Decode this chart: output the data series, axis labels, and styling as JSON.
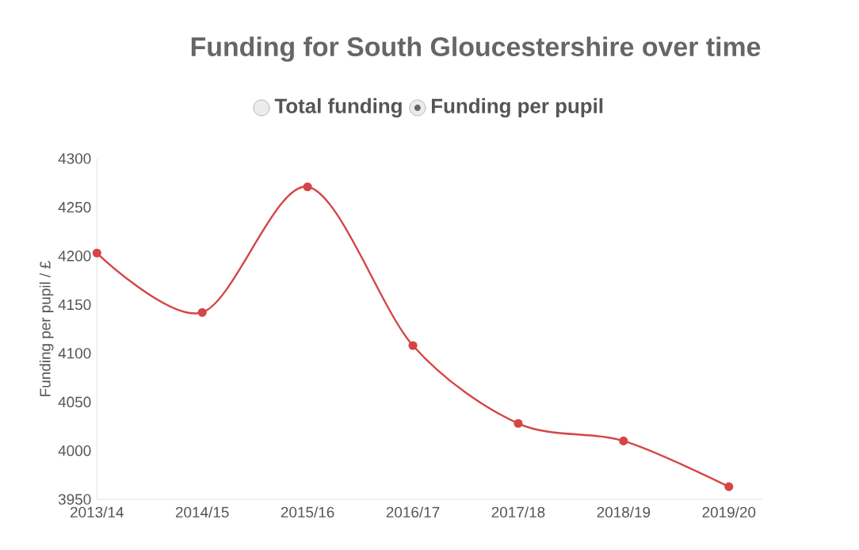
{
  "chart_data": {
    "type": "line",
    "title": "Funding for South Gloucestershire over time",
    "ylabel": "Funding per pupil / £",
    "categories": [
      "2013/14",
      "2014/15",
      "2015/16",
      "2016/17",
      "2017/18",
      "2018/19",
      "2019/20"
    ],
    "series": [
      {
        "name": "Funding per pupil",
        "color": "#d64545",
        "values": [
          4203,
          4142,
          4271,
          4108,
          4028,
          4010,
          3963
        ]
      }
    ],
    "annotations": [
      "Total funding"
    ],
    "ylim": [
      3950,
      4300
    ],
    "yticks": [
      3950,
      4000,
      4050,
      4100,
      4150,
      4200,
      4250,
      4300
    ],
    "legend": "top",
    "marker": "circle",
    "line_style": "solid",
    "grid": false
  }
}
